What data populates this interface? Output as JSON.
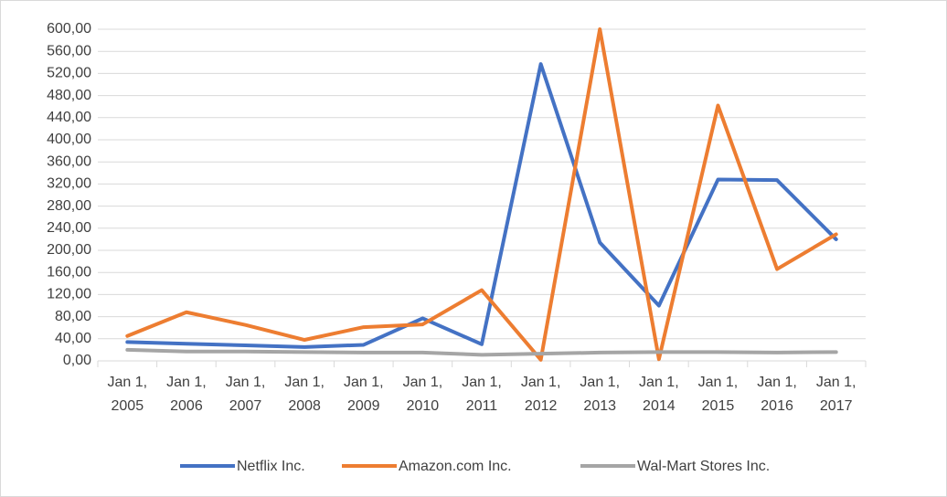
{
  "chart_data": {
    "type": "line",
    "categories": [
      "Jan 1, 2005",
      "Jan 1, 2006",
      "Jan 1, 2007",
      "Jan 1, 2008",
      "Jan 1, 2009",
      "Jan 1, 2010",
      "Jan 1, 2011",
      "Jan 1, 2012",
      "Jan 1, 2013",
      "Jan 1, 2014",
      "Jan 1, 2015",
      "Jan 1, 2016",
      "Jan 1, 2017"
    ],
    "series": [
      {
        "name": "Netflix Inc.",
        "color": "#4472c4",
        "values": [
          34,
          31,
          28,
          25,
          29,
          77,
          30,
          537,
          214,
          100,
          328,
          327,
          220
        ]
      },
      {
        "name": "Amazon.com Inc.",
        "color": "#ed7d31",
        "values": [
          45,
          88,
          65,
          38,
          61,
          66,
          128,
          2,
          600,
          3,
          462,
          166,
          229
        ]
      },
      {
        "name": "Wal-Mart Stores Inc.",
        "color": "#a5a5a5",
        "values": [
          20,
          17,
          17,
          16,
          15,
          15,
          11,
          13,
          15,
          16,
          16,
          15,
          16
        ]
      }
    ],
    "ylim": [
      0,
      600
    ],
    "yticks": [
      {
        "value": 0,
        "label": "0,00"
      },
      {
        "value": 40,
        "label": "40,00"
      },
      {
        "value": 80,
        "label": "80,00"
      },
      {
        "value": 120,
        "label": "120,00"
      },
      {
        "value": 160,
        "label": "160,00"
      },
      {
        "value": 200,
        "label": "200,00"
      },
      {
        "value": 240,
        "label": "240,00"
      },
      {
        "value": 280,
        "label": "280,00"
      },
      {
        "value": 320,
        "label": "320,00"
      },
      {
        "value": 360,
        "label": "360,00"
      },
      {
        "value": 400,
        "label": "400,00"
      },
      {
        "value": 440,
        "label": "440,00"
      },
      {
        "value": 480,
        "label": "480,00"
      },
      {
        "value": 520,
        "label": "520,00"
      },
      {
        "value": 560,
        "label": "560,00"
      },
      {
        "value": 600,
        "label": "600,00"
      }
    ],
    "grid": true,
    "legend": "bottom"
  }
}
